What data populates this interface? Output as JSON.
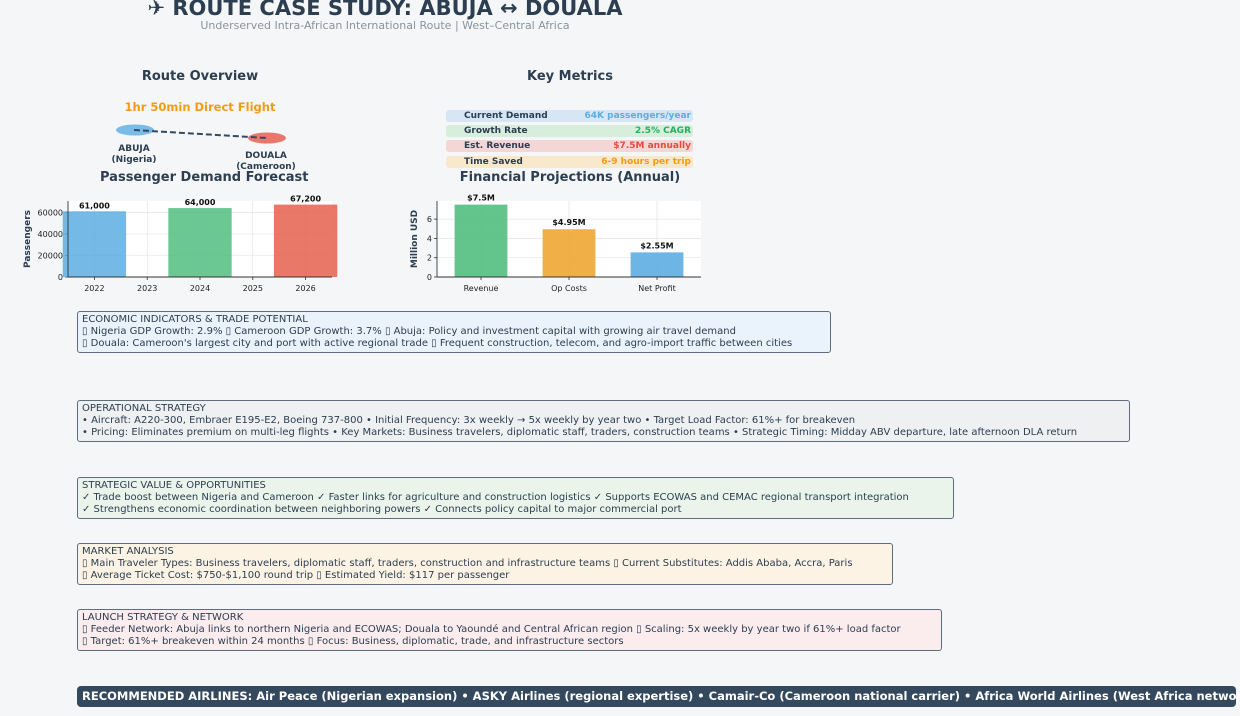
{
  "header": {
    "title": "✈ ROUTE CASE STUDY: ABUJA ↔ DOUALA",
    "subtitle": "Underserved Intra-African International Route | West–Central Africa"
  },
  "route_overview": {
    "title": "Route Overview",
    "flight_label": "1hr 50min Direct Flight",
    "origin_line1": "ABUJA",
    "origin_line2": "(Nigeria)",
    "dest_line1": "DOUALA",
    "dest_line2": "(Cameroon)",
    "origin_color": "#5dade2",
    "dest_color": "#e74c3c"
  },
  "key_metrics": {
    "title": "Key Metrics",
    "items": [
      {
        "label": "Current Demand",
        "value": "64K passengers/year",
        "bg": "#d6e6f5",
        "color": "#5dade2"
      },
      {
        "label": "Growth Rate",
        "value": "2.5% CAGR",
        "bg": "#d8eedd",
        "color": "#27ae60"
      },
      {
        "label": "Est. Revenue",
        "value": "$7.5M annually",
        "bg": "#f4d6d6",
        "color": "#e74c3c"
      },
      {
        "label": "Time Saved",
        "value": "6-9 hours per trip",
        "bg": "#f8e8cc",
        "color": "#f39c12"
      }
    ]
  },
  "chart_data": [
    {
      "type": "bar",
      "title": "Passenger Demand Forecast",
      "xlabel": "",
      "ylabel": "Passengers",
      "categories": [
        "2022",
        "2024",
        "2026"
      ],
      "x": [
        2022,
        2024,
        2026
      ],
      "values": [
        61000,
        64000,
        67200
      ],
      "value_labels": [
        "61,000",
        "64,000",
        "67,200"
      ],
      "colors": [
        "#5dade2",
        "#52be80",
        "#e6604e"
      ],
      "xticks": [
        "2022",
        "2023",
        "2024",
        "2025",
        "2026"
      ],
      "yticks": [
        "0",
        "20000",
        "40000",
        "60000"
      ],
      "ylim": [
        0,
        70560
      ],
      "grid": true
    },
    {
      "type": "bar",
      "title": "Financial Projections (Annual)",
      "xlabel": "",
      "ylabel": "Million USD",
      "categories": [
        "Revenue",
        "Op Costs",
        "Net Profit"
      ],
      "values": [
        7.5,
        4.95,
        2.55
      ],
      "value_labels": [
        "$7.5M",
        "$4.95M",
        "$2.55M"
      ],
      "colors": [
        "#52be80",
        "#f0a733",
        "#5dade2"
      ],
      "yticks": [
        "0",
        "2",
        "4",
        "6"
      ],
      "ylim": [
        0,
        7.875
      ],
      "grid": true
    }
  ],
  "economic": {
    "title": "ECONOMIC INDICATORS & TRADE POTENTIAL",
    "line1": "▯ Nigeria GDP Growth: 2.9%  ▯ Cameroon GDP Growth: 3.7%  ▯ Abuja: Policy and investment capital with growing air travel demand",
    "line2": "▯ Douala: Cameroon's largest city and port with active regional trade  ▯ Frequent construction, telecom, and agro-import traffic between cities"
  },
  "operational": {
    "title": "OPERATIONAL STRATEGY",
    "line1": "• Aircraft: A220-300, Embraer E195-E2, Boeing 737-800  • Initial Frequency: 3x weekly → 5x weekly by year two  • Target Load Factor: 61%+ for breakeven",
    "line2": "• Pricing: Eliminates premium on multi-leg flights  • Key Markets: Business travelers, diplomatic staff, traders, construction teams  • Strategic Timing: Midday ABV departure, late afternoon DLA return"
  },
  "strategic": {
    "title": "STRATEGIC VALUE & OPPORTUNITIES",
    "line1": "✓ Trade boost between Nigeria and Cameroon  ✓ Faster links for agriculture and construction logistics  ✓ Supports ECOWAS and CEMAC regional transport integration",
    "line2": "✓ Strengthens economic coordination between neighboring powers  ✓ Connects policy capital to major commercial port"
  },
  "market": {
    "title": "MARKET ANALYSIS",
    "line1": "▯ Main Traveler Types: Business travelers, diplomatic staff, traders, construction and infrastructure teams  ▯ Current Substitutes: Addis Ababa, Accra, Paris",
    "line2": "▯ Average Ticket Cost: $750-$1,100 round trip  ▯ Estimated Yield: $117 per passenger"
  },
  "launch": {
    "title": "LAUNCH STRATEGY & NETWORK",
    "line1": "▯ Feeder Network: Abuja links to northern Nigeria and ECOWAS; Douala to Yaoundé and Central African region  ▯ Scaling: 5x weekly by year two if 61%+ load factor",
    "line2": "▯ Target: 61%+ breakeven within 24 months  ▯ Focus: Business, diplomatic, trade, and infrastructure sectors"
  },
  "banner": {
    "text": "RECOMMENDED AIRLINES: Air Peace (Nigerian expansion) • ASKY Airlines (regional expertise) • Camair-Co (Cameroon national carrier) • Africa World Airlines (West Africa network)"
  }
}
